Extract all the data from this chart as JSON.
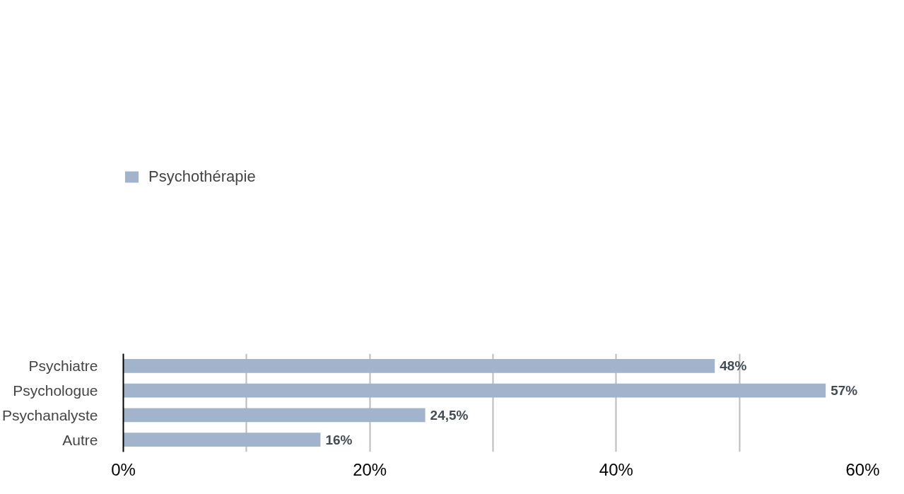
{
  "chart_data": {
    "type": "bar",
    "orientation": "horizontal",
    "categories": [
      "Psychiatre",
      "Psychologue",
      "Psychanalyste",
      "Autre"
    ],
    "series": [
      {
        "name": "Psychothérapie",
        "color": "#a2b4cc",
        "values": [
          48,
          57,
          24.5,
          16
        ],
        "value_labels": [
          "48%",
          "57%",
          "24,5%",
          "16%"
        ]
      }
    ],
    "xlim": [
      0,
      60
    ],
    "xticks": [
      {
        "value": 0,
        "label": "0%"
      },
      {
        "value": 10,
        "label": null
      },
      {
        "value": 20,
        "label": "20%"
      },
      {
        "value": 30,
        "label": null
      },
      {
        "value": 40,
        "label": "40%"
      },
      {
        "value": 50,
        "label": null
      },
      {
        "value": 60,
        "label": "60%"
      }
    ],
    "grid": "x",
    "legend": "top"
  }
}
